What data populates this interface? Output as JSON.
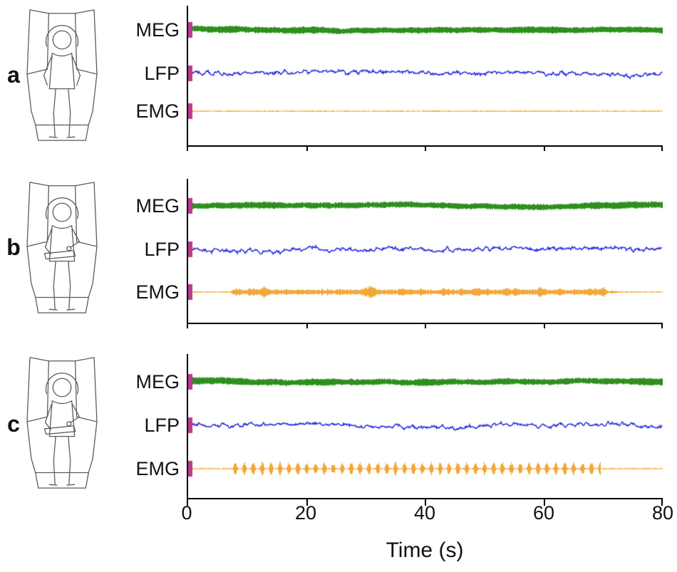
{
  "chart_data": {
    "type": "line",
    "xlabel": "Time (s)",
    "x_range": [
      0,
      80
    ],
    "x_ticks": [
      "0",
      "20",
      "40",
      "60",
      "80"
    ],
    "x_tick_values": [
      0,
      20,
      40,
      60,
      80
    ],
    "axis_color": "#000000",
    "event_marker": {
      "time_s": 0,
      "color": "#b93a8e"
    },
    "panels": [
      {
        "label": "a",
        "illustration": "person-seated-rest",
        "series": [
          {
            "name": "MEG",
            "color": "#2e8f1e",
            "kind": "meg",
            "amp": 4.2
          },
          {
            "name": "LFP",
            "color": "#2121dd",
            "kind": "lfp",
            "amp": 5.6
          },
          {
            "name": "EMG",
            "color": "#f0a83a",
            "kind": "emg",
            "amp": 1.0,
            "burst": {
              "mode": "none"
            }
          }
        ]
      },
      {
        "label": "b",
        "illustration": "person-seated-task",
        "series": [
          {
            "name": "MEG",
            "color": "#2e8f1e",
            "kind": "meg",
            "amp": 4.2
          },
          {
            "name": "LFP",
            "color": "#2121dd",
            "kind": "lfp",
            "amp": 5.6
          },
          {
            "name": "EMG",
            "color": "#f0a83a",
            "kind": "emg",
            "amp": 1.0,
            "burst": {
              "mode": "sustained",
              "start_s": 7,
              "end_s": 71,
              "amp": 10
            }
          }
        ]
      },
      {
        "label": "c",
        "illustration": "person-seated-task",
        "series": [
          {
            "name": "MEG",
            "color": "#2e8f1e",
            "kind": "meg",
            "amp": 4.2
          },
          {
            "name": "LFP",
            "color": "#2121dd",
            "kind": "lfp",
            "amp": 5.6
          },
          {
            "name": "EMG",
            "color": "#f0a83a",
            "kind": "emg",
            "amp": 1.0,
            "burst": {
              "mode": "rhythmic",
              "start_s": 7.5,
              "end_s": 69.5,
              "period_s": 1.5,
              "burst_dur_s": 0.85,
              "amp": 10
            }
          }
        ]
      }
    ]
  }
}
